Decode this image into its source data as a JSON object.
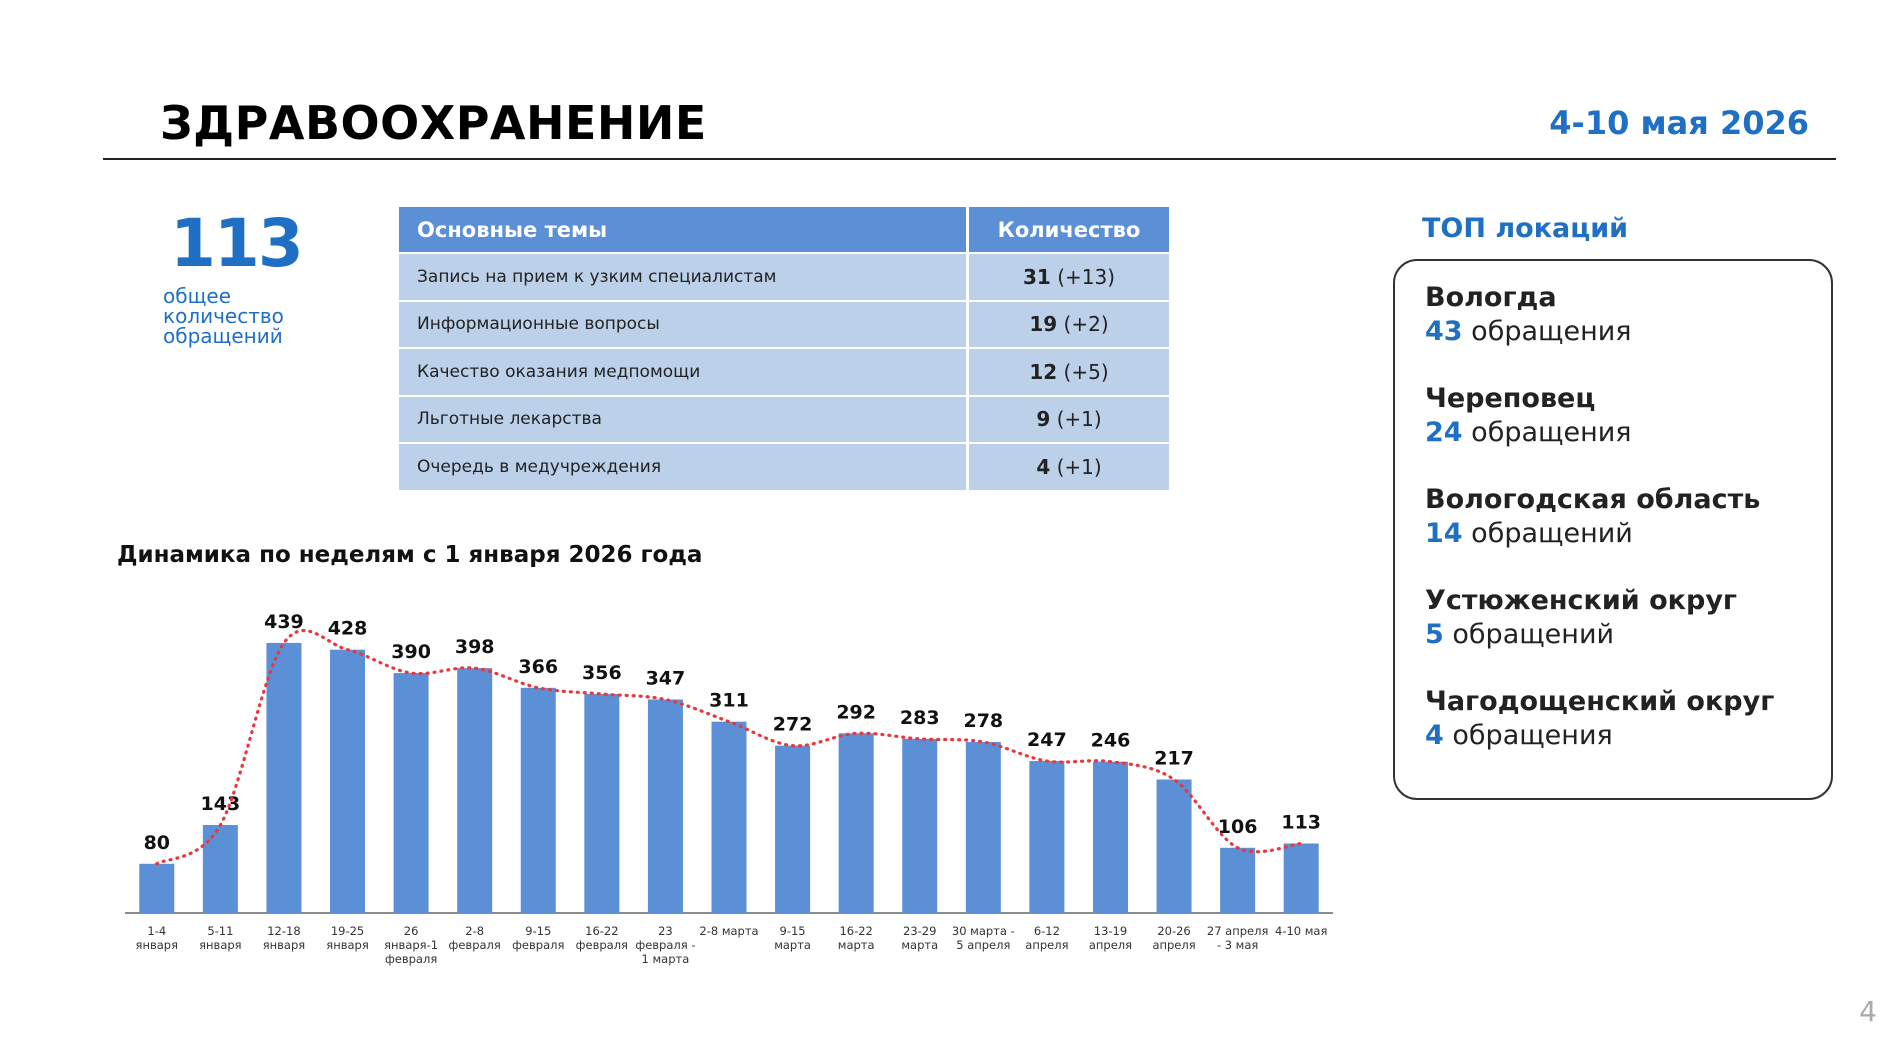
{
  "header": {
    "title": "ЗДРАВООХРАНЕНИЕ",
    "period": "4-10 мая 2026"
  },
  "total": {
    "value": "113",
    "label": "общее количество обращений"
  },
  "topics_table": {
    "headers": [
      "Основные темы",
      "Количество"
    ],
    "rows": [
      {
        "topic": "Запись на прием к узким специалистам",
        "count": "31",
        "delta": "(+13)"
      },
      {
        "topic": "Информационные вопросы",
        "count": "19",
        "delta": "(+2)"
      },
      {
        "topic": "Качество оказания медпомощи",
        "count": "12",
        "delta": "(+5)"
      },
      {
        "topic": "Льготные лекарства",
        "count": "9",
        "delta": "(+1)"
      },
      {
        "topic": "Очередь в медучреждения",
        "count": "4",
        "delta": "(+1)"
      }
    ]
  },
  "locations": {
    "title": "ТОП локаций",
    "items": [
      {
        "name": "Вологда",
        "count": "43",
        "unit": "обращения"
      },
      {
        "name": "Череповец",
        "count": "24",
        "unit": "обращения"
      },
      {
        "name": "Вологодская область",
        "count": "14",
        "unit": "обращений"
      },
      {
        "name": "Устюженский округ",
        "count": "5",
        "unit": "обращений"
      },
      {
        "name": "Чагодощенский округ",
        "count": "4",
        "unit": "обращения"
      }
    ]
  },
  "page_number": "4",
  "colors": {
    "accent": "#1f6fc5",
    "bar": "#5b8fd6",
    "table_row": "#bdd0ea",
    "trend": "#e8383d"
  },
  "chart_data": {
    "type": "bar",
    "title": "Динамика по неделям с 1 января 2026 года",
    "categories": [
      [
        "1-4",
        "января"
      ],
      [
        "5-11",
        "января"
      ],
      [
        "12-18",
        "января"
      ],
      [
        "19-25",
        "января"
      ],
      [
        "26",
        "января-1",
        "февраля"
      ],
      [
        "2-8",
        "февраля"
      ],
      [
        "9-15",
        "февраля"
      ],
      [
        "16-22",
        "февраля"
      ],
      [
        "23",
        "февраля -",
        "1 марта"
      ],
      [
        "2-8 марта"
      ],
      [
        "9-15",
        "марта"
      ],
      [
        "16-22",
        "марта"
      ],
      [
        "23-29",
        "марта"
      ],
      [
        "30 марта -",
        "5 апреля"
      ],
      [
        "6-12",
        "апреля"
      ],
      [
        "13-19",
        "апреля"
      ],
      [
        "20-26",
        "апреля"
      ],
      [
        "27 апреля",
        "- 3 мая"
      ],
      [
        "4-10 мая"
      ]
    ],
    "values": [
      80,
      143,
      439,
      428,
      390,
      398,
      366,
      356,
      347,
      311,
      272,
      292,
      283,
      278,
      247,
      246,
      217,
      106,
      113
    ],
    "trendline": "dotted moving average",
    "ylim": [
      0,
      460
    ],
    "grid": false,
    "data_labels": true
  }
}
